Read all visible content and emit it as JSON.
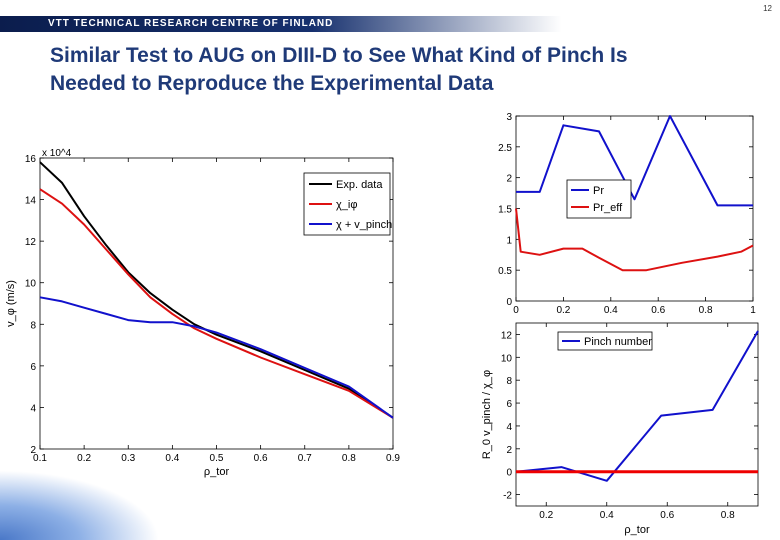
{
  "page_number": "12",
  "banner": "VTT TECHNICAL RESEARCH CENTRE OF FINLAND",
  "title_line1": "Similar Test to AUG on DIII-D to See What Kind of Pinch Is",
  "title_line2": "Needed to Reproduce the Experimental Data",
  "chart_data": [
    {
      "type": "line",
      "title": "",
      "xlabel": "ρ_tor",
      "ylabel": "v_φ (m/s)",
      "y_multiplier": "x 10^4",
      "xlim": [
        0.1,
        0.9
      ],
      "ylim": [
        2,
        16
      ],
      "xticks": [
        "0.1",
        "0.2",
        "0.3",
        "0.4",
        "0.5",
        "0.6",
        "0.7",
        "0.8",
        "0.9"
      ],
      "yticks": [
        "2",
        "4",
        "6",
        "8",
        "10",
        "12",
        "14",
        "16"
      ],
      "legend_position": "top-right",
      "series": [
        {
          "name": "Exp. data",
          "color": "#000000",
          "x": [
            0.1,
            0.15,
            0.2,
            0.25,
            0.3,
            0.35,
            0.4,
            0.45,
            0.5,
            0.6,
            0.7,
            0.8,
            0.9
          ],
          "y": [
            15.8,
            14.8,
            13.2,
            11.8,
            10.5,
            9.5,
            8.7,
            8.0,
            7.5,
            6.7,
            5.8,
            4.9,
            3.5
          ]
        },
        {
          "name": "χ_iφ",
          "color": "#dd1111",
          "x": [
            0.1,
            0.15,
            0.2,
            0.25,
            0.3,
            0.35,
            0.4,
            0.45,
            0.5,
            0.6,
            0.7,
            0.8,
            0.9
          ],
          "y": [
            14.5,
            13.8,
            12.8,
            11.6,
            10.4,
            9.3,
            8.5,
            7.8,
            7.3,
            6.4,
            5.6,
            4.8,
            3.5
          ]
        },
        {
          "name": "χ + v_pinch",
          "color": "#1111cc",
          "x": [
            0.1,
            0.15,
            0.2,
            0.25,
            0.3,
            0.35,
            0.4,
            0.45,
            0.5,
            0.6,
            0.7,
            0.8,
            0.9
          ],
          "y": [
            9.3,
            9.1,
            8.8,
            8.5,
            8.2,
            8.1,
            8.1,
            7.9,
            7.6,
            6.8,
            5.9,
            5.0,
            3.5
          ]
        }
      ]
    },
    {
      "type": "line",
      "xlim": [
        0,
        1
      ],
      "ylim": [
        0,
        3
      ],
      "xticks": [
        "0",
        "0.2",
        "0.4",
        "0.6",
        "0.8",
        "1"
      ],
      "yticks": [
        "0",
        "0.5",
        "1",
        "1.5",
        "2",
        "2.5",
        "3"
      ],
      "legend_position": "left",
      "series": [
        {
          "name": "Pr",
          "color": "#1111cc",
          "x": [
            0,
            0.1,
            0.2,
            0.35,
            0.5,
            0.65,
            0.85,
            1.0
          ],
          "y": [
            1.77,
            1.77,
            2.85,
            2.75,
            1.65,
            3.0,
            1.55,
            1.55
          ]
        },
        {
          "name": "Pr_eff",
          "color": "#dd1111",
          "x": [
            0,
            0.02,
            0.1,
            0.2,
            0.28,
            0.35,
            0.45,
            0.55,
            0.7,
            0.85,
            0.95,
            1.0
          ],
          "y": [
            1.5,
            0.8,
            0.75,
            0.85,
            0.85,
            0.7,
            0.5,
            0.5,
            0.62,
            0.72,
            0.8,
            0.9
          ]
        }
      ]
    },
    {
      "type": "line",
      "xlabel": "ρ_tor",
      "ylabel": "R_0 v_pinch / χ_φ",
      "xlim": [
        0.1,
        0.9
      ],
      "ylim": [
        -3,
        13
      ],
      "xticks": [
        "0.2",
        "0.4",
        "0.6",
        "0.8"
      ],
      "yticks": [
        "-2",
        "0",
        "2",
        "4",
        "6",
        "8",
        "10",
        "12"
      ],
      "legend_position": "top",
      "series": [
        {
          "name": "Pinch number",
          "color": "#1111cc",
          "x": [
            0.1,
            0.25,
            0.4,
            0.58,
            0.75,
            0.9
          ],
          "y": [
            0,
            0.4,
            -0.8,
            4.9,
            5.4,
            12.3
          ]
        },
        {
          "name": "",
          "color": "#ee0000",
          "x": [
            0.1,
            0.9
          ],
          "y": [
            0,
            0
          ]
        }
      ]
    }
  ]
}
